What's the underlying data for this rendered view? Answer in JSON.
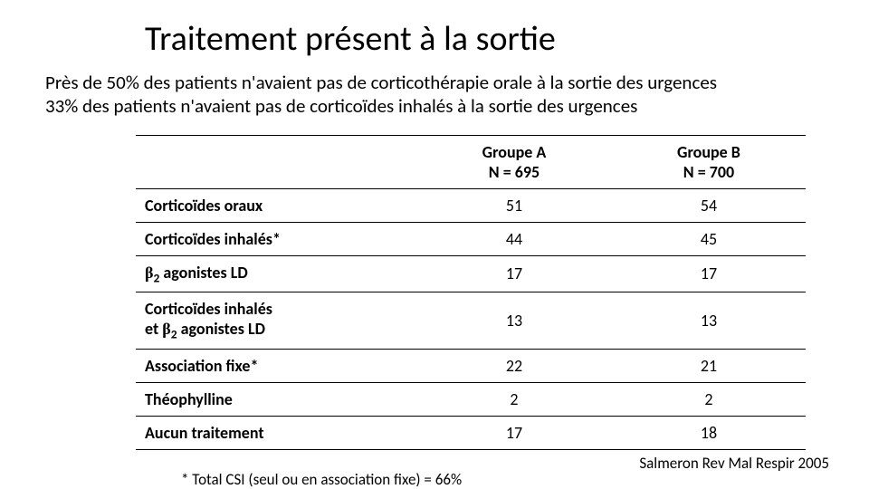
{
  "title": "Traitement présent à la sortie",
  "subtitle_line1": "Près de 50% des patients n'avaient pas de corticothérapie orale à la sortie des urgences",
  "subtitle_line2": "33% des patients n'avaient pas de corticoïdes inhalés à la sortie des urgences",
  "table": {
    "columns": [
      {
        "label": "Groupe A",
        "n": "N = 695"
      },
      {
        "label": "Groupe B",
        "n": "N = 700"
      }
    ],
    "rows": [
      {
        "label": "Corticoïdes oraux",
        "a": "51",
        "b": "54"
      },
      {
        "label_html": "Corticoïdes inhalés*",
        "a": "44",
        "b": "45"
      },
      {
        "label_html": "β2 agonistes LD",
        "beta": true,
        "a": "17",
        "b": "17"
      },
      {
        "label_html": "Corticoïdes inhalés et β2 agonistes LD",
        "beta": true,
        "multiline": true,
        "a": "13",
        "b": "13"
      },
      {
        "label": "Association fixe*",
        "a": "22",
        "b": "21"
      },
      {
        "label": "Théophylline",
        "a": "2",
        "b": "2"
      },
      {
        "label": "Aucun traitement",
        "a": "17",
        "b": "18"
      }
    ]
  },
  "footnote": "* Total CSI (seul ou en association fixe) = 66%",
  "citation": "Salmeron Rev Mal Respir 2005",
  "style": {
    "background": "#ffffff",
    "text_color": "#000000",
    "border_color": "#000000",
    "title_fontsize": 38,
    "body_fontsize": 21,
    "table_fontsize": 18,
    "footnote_fontsize": 17
  }
}
